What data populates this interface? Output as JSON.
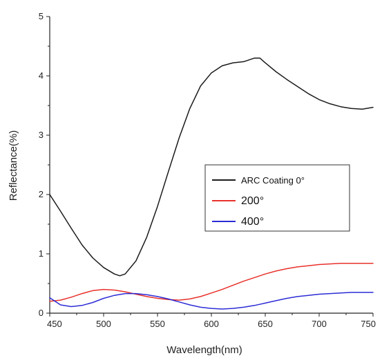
{
  "chart_data": {
    "type": "line",
    "xlabel": "Wavelength(nm)",
    "ylabel": "Reflectance(%)",
    "xlim": [
      450,
      750
    ],
    "ylim": [
      0,
      5
    ],
    "xticks": [
      450,
      500,
      550,
      600,
      650,
      700,
      750
    ],
    "yticks": [
      0,
      1,
      2,
      3,
      4,
      5
    ],
    "grid": false,
    "legend_position": "center-right",
    "series": [
      {
        "name": "ARC Coating 0°",
        "color": "#1a1a1a",
        "x": [
          450,
          460,
          470,
          480,
          490,
          500,
          510,
          515,
          520,
          530,
          540,
          550,
          560,
          570,
          580,
          590,
          600,
          610,
          620,
          630,
          640,
          645,
          650,
          660,
          670,
          680,
          690,
          700,
          710,
          720,
          730,
          740,
          750
        ],
        "y": [
          2.0,
          1.72,
          1.43,
          1.15,
          0.93,
          0.77,
          0.66,
          0.63,
          0.66,
          0.88,
          1.28,
          1.8,
          2.38,
          2.95,
          3.45,
          3.83,
          4.05,
          4.17,
          4.22,
          4.24,
          4.3,
          4.3,
          4.22,
          4.07,
          3.94,
          3.82,
          3.7,
          3.6,
          3.53,
          3.48,
          3.45,
          3.44,
          3.47
        ]
      },
      {
        "name": "200°",
        "color": "#e8302a",
        "x": [
          450,
          460,
          470,
          480,
          490,
          500,
          510,
          520,
          530,
          540,
          550,
          560,
          570,
          580,
          590,
          600,
          610,
          620,
          630,
          640,
          650,
          660,
          670,
          680,
          690,
          700,
          710,
          720,
          730,
          740,
          750
        ],
        "y": [
          0.2,
          0.22,
          0.27,
          0.33,
          0.38,
          0.4,
          0.39,
          0.36,
          0.32,
          0.28,
          0.25,
          0.23,
          0.22,
          0.24,
          0.28,
          0.34,
          0.4,
          0.47,
          0.54,
          0.6,
          0.66,
          0.71,
          0.75,
          0.78,
          0.8,
          0.82,
          0.83,
          0.84,
          0.84,
          0.84,
          0.84
        ]
      },
      {
        "name": "400°",
        "color": "#2b2bd6",
        "x": [
          450,
          460,
          470,
          480,
          490,
          500,
          510,
          520,
          530,
          540,
          550,
          560,
          570,
          580,
          590,
          600,
          610,
          620,
          630,
          640,
          650,
          660,
          670,
          680,
          690,
          700,
          710,
          720,
          730,
          740,
          750
        ],
        "y": [
          0.26,
          0.14,
          0.11,
          0.13,
          0.18,
          0.25,
          0.3,
          0.33,
          0.33,
          0.31,
          0.28,
          0.24,
          0.19,
          0.14,
          0.1,
          0.08,
          0.07,
          0.08,
          0.1,
          0.13,
          0.17,
          0.21,
          0.25,
          0.28,
          0.3,
          0.32,
          0.33,
          0.34,
          0.35,
          0.35,
          0.35
        ]
      }
    ]
  }
}
